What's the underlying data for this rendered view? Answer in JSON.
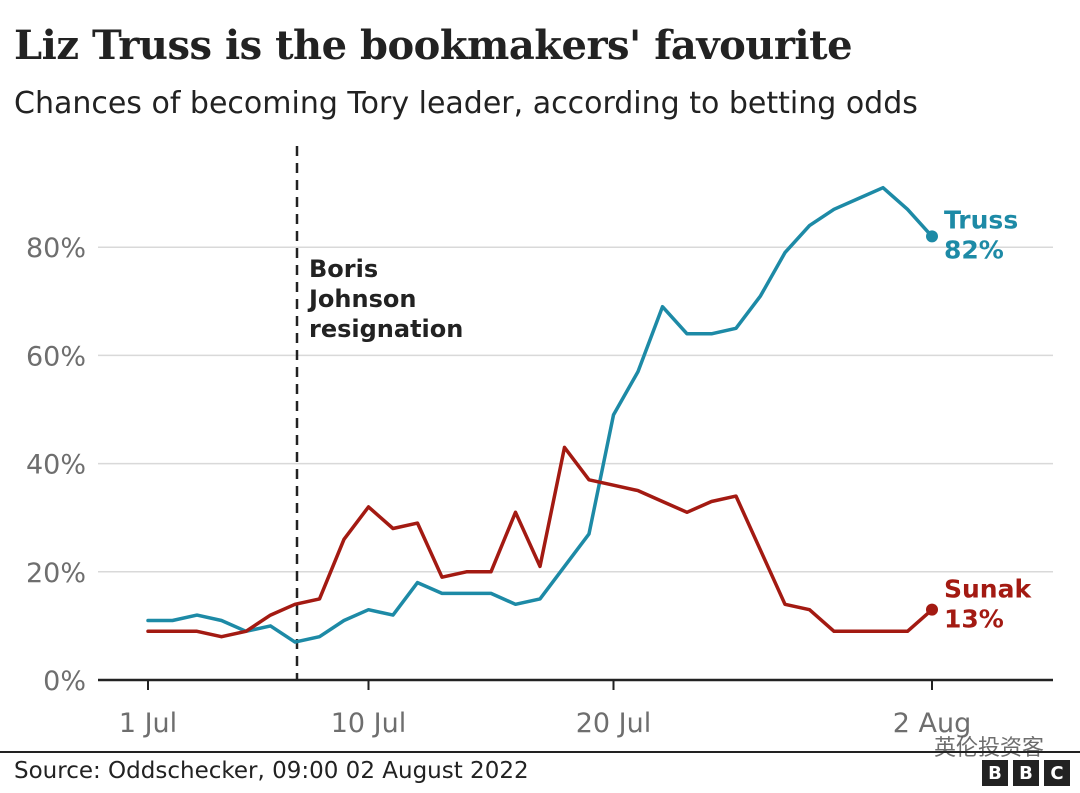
{
  "header": {
    "title": "Liz Truss is the bookmakers' favourite",
    "subtitle": "Chances of becoming Tory leader, according to betting odds"
  },
  "footer": {
    "source": "Source: Oddschecker, 09:00 02 August 2022",
    "logo_letters": [
      "B",
      "B",
      "C"
    ],
    "watermark": "英伦投资客"
  },
  "colors": {
    "truss": "#1d8aa6",
    "sunak": "#a31a12",
    "grid": "#d9d9d9",
    "axis": "#222222",
    "tick_text": "#6e6e6e",
    "annotation": "#222222"
  },
  "chart_data": {
    "type": "line",
    "title": "Liz Truss is the bookmakers' favourite",
    "subtitle": "Chances of becoming Tory leader, according to betting odds",
    "x": [
      "2022-07-01",
      "2022-07-02",
      "2022-07-03",
      "2022-07-04",
      "2022-07-05",
      "2022-07-06",
      "2022-07-07",
      "2022-07-08",
      "2022-07-09",
      "2022-07-10",
      "2022-07-11",
      "2022-07-12",
      "2022-07-13",
      "2022-07-14",
      "2022-07-15",
      "2022-07-16",
      "2022-07-17",
      "2022-07-18",
      "2022-07-19",
      "2022-07-20",
      "2022-07-21",
      "2022-07-22",
      "2022-07-23",
      "2022-07-24",
      "2022-07-25",
      "2022-07-26",
      "2022-07-27",
      "2022-07-28",
      "2022-07-29",
      "2022-07-30",
      "2022-07-31",
      "2022-08-01",
      "2022-08-02"
    ],
    "series": [
      {
        "name": "Truss",
        "end_label": "82%",
        "values": [
          11,
          11,
          12,
          11,
          9,
          10,
          7,
          8,
          11,
          13,
          12,
          18,
          16,
          16,
          16,
          14,
          15,
          21,
          27,
          49,
          57,
          69,
          64,
          64,
          65,
          71,
          79,
          84,
          87,
          89,
          91,
          87,
          82
        ]
      },
      {
        "name": "Sunak",
        "end_label": "13%",
        "values": [
          9,
          9,
          9,
          8,
          9,
          12,
          14,
          15,
          26,
          32,
          28,
          29,
          19,
          20,
          20,
          31,
          21,
          43,
          37,
          36,
          35,
          33,
          31,
          33,
          34,
          24,
          14,
          13,
          9,
          9,
          9,
          9,
          13
        ]
      }
    ],
    "x_ticks": [
      {
        "date": "2022-07-01",
        "label": "1 Jul"
      },
      {
        "date": "2022-07-10",
        "label": "10 Jul"
      },
      {
        "date": "2022-07-20",
        "label": "20 Jul"
      },
      {
        "date": "2022-08-02",
        "label": "2 Aug"
      }
    ],
    "y_ticks": [
      {
        "value": 0,
        "label": "0%"
      },
      {
        "value": 20,
        "label": "20%"
      },
      {
        "value": 40,
        "label": "40%"
      },
      {
        "value": 60,
        "label": "60%"
      },
      {
        "value": 80,
        "label": "80%"
      }
    ],
    "ylim": [
      0,
      100
    ],
    "grid": true,
    "annotation": {
      "date": "2022-07-07",
      "lines": [
        "Boris",
        "Johnson",
        "resignation"
      ]
    },
    "xlabel": "",
    "ylabel": ""
  }
}
